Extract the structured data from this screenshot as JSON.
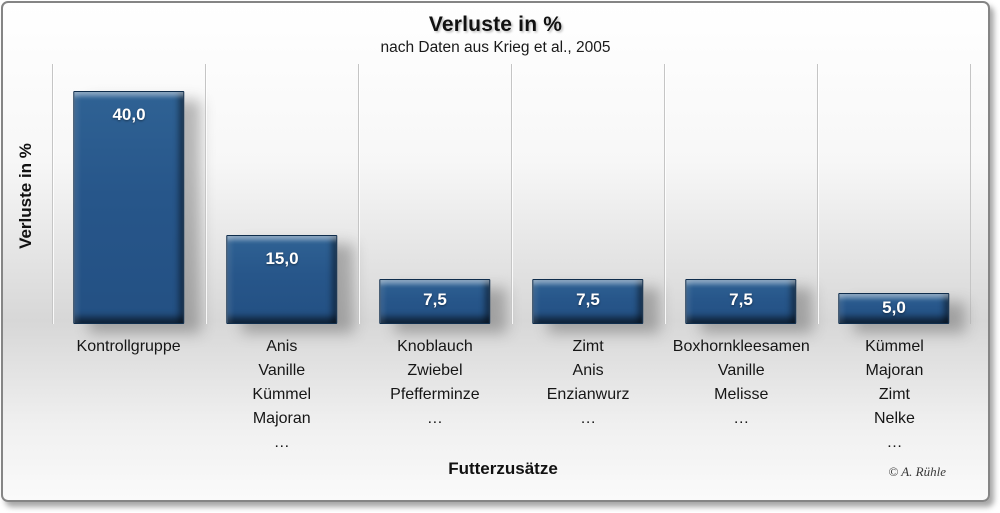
{
  "header": {
    "title": "Verluste in %",
    "subtitle": "nach Daten aus Krieg et al., 2005"
  },
  "axes": {
    "y_title": "Verluste in %",
    "x_title": "Futterzusätze"
  },
  "credit": "© A. Rühle",
  "colors": {
    "bar_face": "#27568a",
    "bar_border": "#0f2d4c",
    "bar_bevel_light": "#3f6f9f",
    "bar_bevel_dark": "#16334f",
    "value_label": "#ffffff",
    "gridline": "#c5c5c5",
    "background_mid": "#d7d7d7"
  },
  "chart_data": {
    "type": "bar",
    "title": "Verluste in %",
    "subtitle": "nach Daten aus Krieg et al., 2005",
    "xlabel": "Futterzusätze",
    "ylabel": "Verluste in %",
    "ylim": [
      0,
      45
    ],
    "gridlines": "vertical category separators only",
    "legend": "none",
    "categories": [
      [
        "Kontrollgruppe"
      ],
      [
        "Anis",
        "Vanille",
        "Kümmel",
        "Majoran",
        "…"
      ],
      [
        "Knoblauch",
        "Zwiebel",
        "Pfefferminze",
        "…"
      ],
      [
        "Zimt",
        "Anis",
        "Enzianwurz",
        "…"
      ],
      [
        "Boxhornkleesamen",
        "Vanille",
        "Melisse",
        "…"
      ],
      [
        "Kümmel",
        "Majoran",
        "Zimt",
        "Nelke",
        "…"
      ]
    ],
    "values": [
      40.0,
      15.0,
      7.5,
      7.5,
      7.5,
      5.0
    ],
    "value_labels": [
      "40,0",
      "15,0",
      "7,5",
      "7,5",
      "7,5",
      "5,0"
    ]
  }
}
